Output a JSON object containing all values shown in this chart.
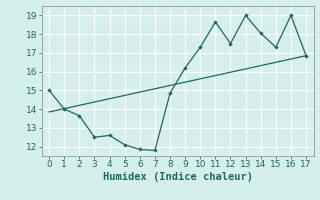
{
  "xlabel": "Humidex (Indice chaleur)",
  "bg_color": "#d5efeb",
  "grid_color": "#c0ddd9",
  "line_color": "#1a6b5e",
  "xlim": [
    -0.5,
    17.5
  ],
  "ylim": [
    11.5,
    19.5
  ],
  "xticks": [
    0,
    1,
    2,
    3,
    4,
    5,
    6,
    7,
    8,
    9,
    10,
    11,
    12,
    13,
    14,
    15,
    16,
    17
  ],
  "yticks": [
    12,
    13,
    14,
    15,
    16,
    17,
    18,
    19
  ],
  "curve1_x": [
    0,
    1,
    2,
    3,
    4,
    5,
    6,
    7,
    8,
    9,
    10,
    11,
    12,
    13,
    14,
    15,
    16,
    17
  ],
  "curve1_y": [
    15.0,
    14.0,
    13.65,
    12.5,
    12.6,
    12.1,
    11.85,
    11.8,
    14.85,
    16.2,
    17.3,
    18.65,
    17.5,
    19.0,
    18.05,
    17.3,
    19.0,
    16.85
  ],
  "curve2_x": [
    0,
    17
  ],
  "curve2_y": [
    13.85,
    16.85
  ],
  "tick_fontsize": 6.5,
  "xlabel_fontsize": 7.5
}
